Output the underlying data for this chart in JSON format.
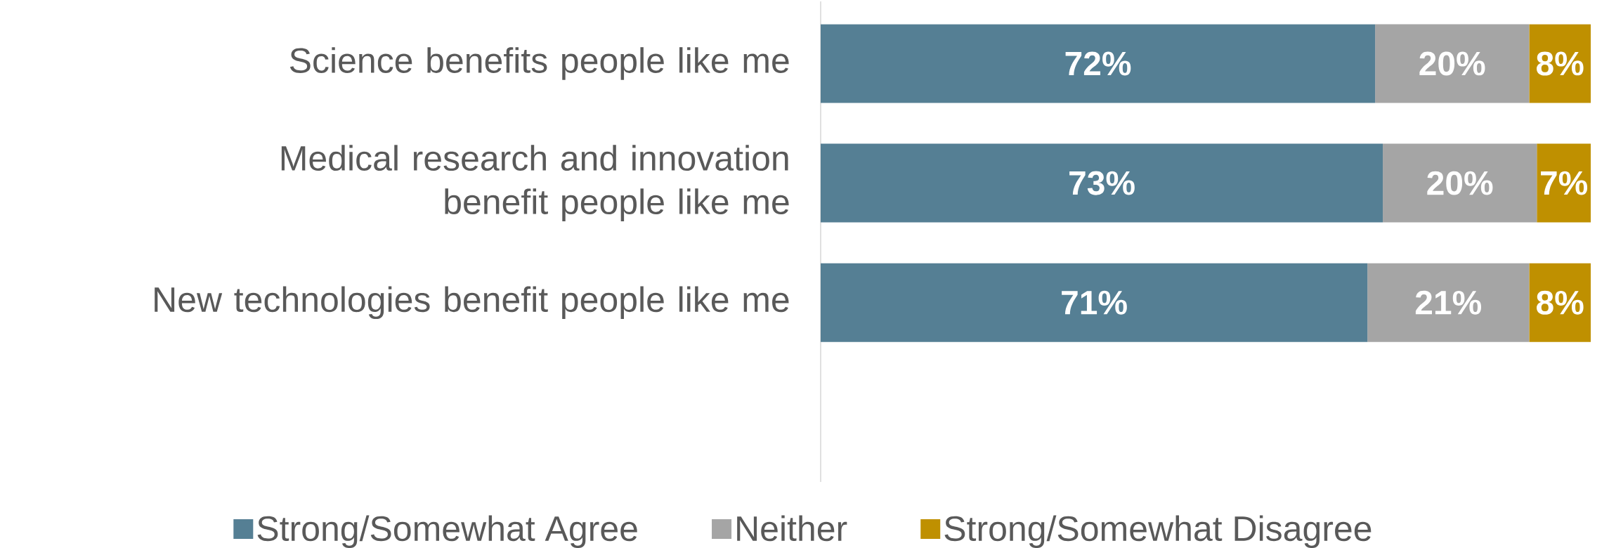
{
  "chart_data": {
    "type": "bar",
    "orientation": "horizontal",
    "stacked": true,
    "legend": "bottom",
    "tick_labels": "y",
    "categories": [
      "Science benefits people like me",
      "Medical research and innovation benefit people like me",
      "New technologies benefit people like me"
    ],
    "series": [
      {
        "name": "Strong/Somewhat Agree",
        "color": "#557f94",
        "values": [
          72,
          73,
          71
        ],
        "value_labels": [
          "72%",
          "73%",
          "71%"
        ]
      },
      {
        "name": "Neither",
        "color": "#a5a5a5",
        "values": [
          20,
          20,
          21
        ],
        "value_labels": [
          "20%",
          "20%",
          "21%"
        ]
      },
      {
        "name": "Strong/Somewhat Disagree",
        "color": "#bf9000",
        "values": [
          8,
          7,
          8
        ],
        "value_labels": [
          "8%",
          "7%",
          "8%"
        ]
      }
    ]
  }
}
